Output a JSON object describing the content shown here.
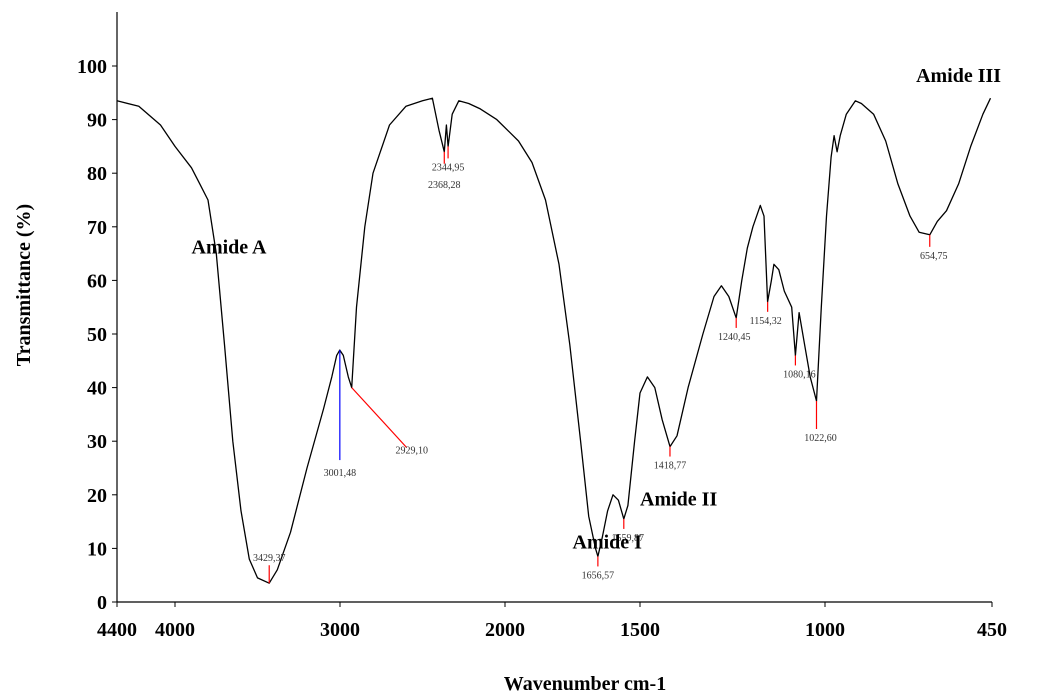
{
  "chart_data": {
    "type": "line",
    "title": "",
    "xlabel": "Wavenumber cm-1",
    "ylabel": "Transmittance (%)",
    "xlim": [
      4400,
      450
    ],
    "ylim": [
      0,
      100
    ],
    "grid": false,
    "x_ticks": [
      4400,
      4000,
      3000,
      2000,
      1500,
      1000,
      450
    ],
    "x_tick_labels": [
      "4400",
      "4000",
      "3000",
      "2000",
      "1500",
      "1000",
      "450"
    ],
    "y_ticks": [
      0,
      10,
      20,
      30,
      40,
      50,
      60,
      70,
      80,
      90,
      100
    ],
    "y_tick_labels": [
      "0",
      "10",
      "20",
      "30",
      "40",
      "50",
      "60",
      "70",
      "80",
      "90",
      "100"
    ],
    "series": [
      {
        "color": "#000000",
        "points": [
          [
            4400,
            93.5
          ],
          [
            4250,
            92.5
          ],
          [
            4100,
            89
          ],
          [
            4000,
            85
          ],
          [
            3900,
            81
          ],
          [
            3850,
            78
          ],
          [
            3800,
            75
          ],
          [
            3750,
            65
          ],
          [
            3700,
            48
          ],
          [
            3650,
            30
          ],
          [
            3600,
            17
          ],
          [
            3550,
            8
          ],
          [
            3500,
            4.5
          ],
          [
            3429,
            3.5
          ],
          [
            3380,
            6
          ],
          [
            3300,
            13
          ],
          [
            3200,
            25
          ],
          [
            3100,
            36
          ],
          [
            3050,
            42
          ],
          [
            3020,
            46
          ],
          [
            3001,
            47
          ],
          [
            2980,
            46
          ],
          [
            2950,
            42
          ],
          [
            2929,
            40
          ],
          [
            2900,
            55
          ],
          [
            2850,
            70
          ],
          [
            2800,
            80
          ],
          [
            2700,
            89
          ],
          [
            2600,
            92.5
          ],
          [
            2500,
            93.5
          ],
          [
            2440,
            94
          ],
          [
            2400,
            88
          ],
          [
            2368,
            84
          ],
          [
            2355,
            89
          ],
          [
            2345,
            85
          ],
          [
            2320,
            91
          ],
          [
            2280,
            93.5
          ],
          [
            2220,
            93
          ],
          [
            2150,
            92
          ],
          [
            2050,
            90
          ],
          [
            1950,
            86
          ],
          [
            1900,
            82
          ],
          [
            1850,
            75
          ],
          [
            1800,
            63
          ],
          [
            1760,
            48
          ],
          [
            1720,
            30
          ],
          [
            1690,
            16
          ],
          [
            1665,
            10
          ],
          [
            1656,
            8.5
          ],
          [
            1640,
            12
          ],
          [
            1620,
            17
          ],
          [
            1600,
            20
          ],
          [
            1580,
            19
          ],
          [
            1560,
            15.5
          ],
          [
            1545,
            18
          ],
          [
            1520,
            30
          ],
          [
            1500,
            39
          ],
          [
            1480,
            42
          ],
          [
            1460,
            40
          ],
          [
            1440,
            34
          ],
          [
            1419,
            29
          ],
          [
            1400,
            31
          ],
          [
            1370,
            40
          ],
          [
            1330,
            50
          ],
          [
            1300,
            57
          ],
          [
            1280,
            59
          ],
          [
            1260,
            57
          ],
          [
            1240,
            53
          ],
          [
            1225,
            60
          ],
          [
            1210,
            66
          ],
          [
            1195,
            70
          ],
          [
            1175,
            74
          ],
          [
            1165,
            72
          ],
          [
            1155,
            56
          ],
          [
            1145,
            60
          ],
          [
            1138,
            63
          ],
          [
            1125,
            62
          ],
          [
            1110,
            58
          ],
          [
            1090,
            55
          ],
          [
            1080,
            46
          ],
          [
            1070,
            54
          ],
          [
            1055,
            48
          ],
          [
            1040,
            42
          ],
          [
            1023,
            37.5
          ],
          [
            1010,
            55
          ],
          [
            995,
            72
          ],
          [
            980,
            83
          ],
          [
            970,
            87
          ],
          [
            960,
            84
          ],
          [
            950,
            87
          ],
          [
            930,
            91
          ],
          [
            900,
            93.5
          ],
          [
            880,
            93
          ],
          [
            860,
            92
          ],
          [
            840,
            91
          ],
          [
            800,
            86
          ],
          [
            760,
            78
          ],
          [
            720,
            72
          ],
          [
            690,
            69
          ],
          [
            655,
            68.5
          ],
          [
            630,
            71
          ],
          [
            600,
            73
          ],
          [
            560,
            78
          ],
          [
            520,
            85
          ],
          [
            480,
            91
          ],
          [
            455,
            94
          ]
        ]
      }
    ],
    "peak_labels": [
      {
        "text": "3429,37",
        "x": 3429,
        "y": 3.5,
        "tick_color": "#ff0000"
      },
      {
        "text": "3001,48",
        "x": 3001,
        "y": 47,
        "tick_color": "#0000ff"
      },
      {
        "text": "2929,10",
        "x": 2929,
        "y": 40,
        "tick_color": "#ff0000"
      },
      {
        "text": "2344,95",
        "x": 2345,
        "y": 85,
        "tick_color": "#ff0000"
      },
      {
        "text": "2368,28",
        "x": 2368,
        "y": 84,
        "tick_color": "#ff0000"
      },
      {
        "text": "1656,57",
        "x": 1656,
        "y": 8.5,
        "tick_color": "#ff0000"
      },
      {
        "text": "1559,87",
        "x": 1560,
        "y": 15.5,
        "tick_color": "#ff0000"
      },
      {
        "text": "1418,77",
        "x": 1419,
        "y": 29,
        "tick_color": "#ff0000"
      },
      {
        "text": "1240,45",
        "x": 1240,
        "y": 53,
        "tick_color": "#ff0000"
      },
      {
        "text": "1154,32",
        "x": 1155,
        "y": 56,
        "tick_color": "#ff0000"
      },
      {
        "text": "1080,16",
        "x": 1080,
        "y": 46,
        "tick_color": "#ff0000"
      },
      {
        "text": "1022,60",
        "x": 1023,
        "y": 37.5,
        "tick_color": "#ff0000"
      },
      {
        "text": "654,75",
        "x": 655,
        "y": 68.5,
        "tick_color": "#ff0000"
      }
    ],
    "annotations": [
      {
        "text": "Amide A",
        "x": 3900,
        "y": 65
      },
      {
        "text": "Amide I",
        "x": 1750,
        "y": 10
      },
      {
        "text": "Amide II",
        "x": 1500,
        "y": 18
      },
      {
        "text": "Amide III",
        "x": 700,
        "y": 97
      }
    ]
  }
}
